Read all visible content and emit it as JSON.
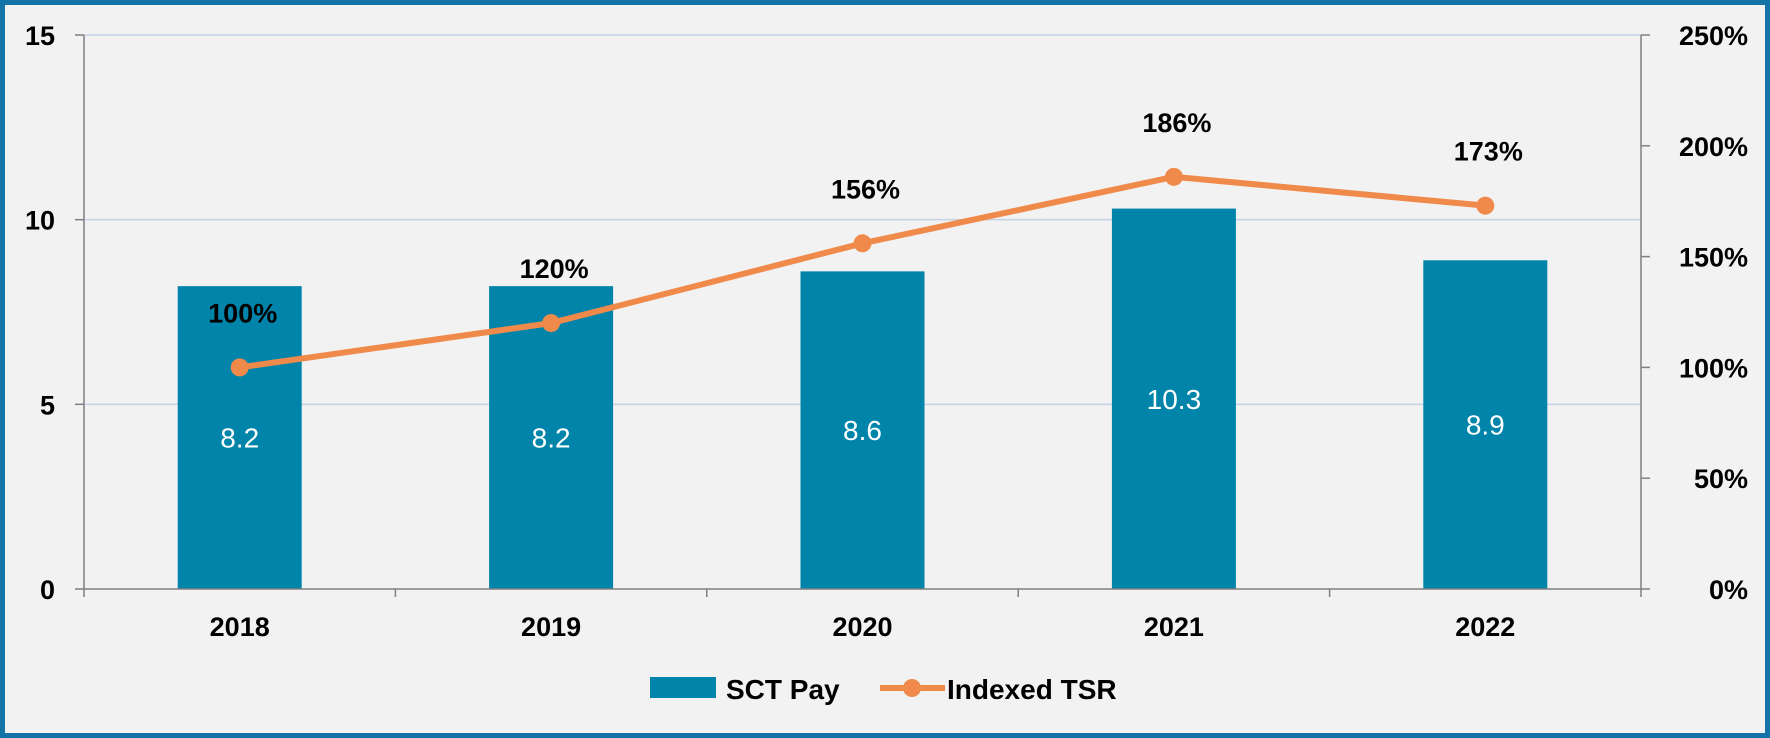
{
  "chart_data": {
    "type": "bar+line",
    "categories": [
      "2018",
      "2019",
      "2020",
      "2021",
      "2022"
    ],
    "series": [
      {
        "name": "SCT Pay",
        "type": "bar",
        "axis": "left",
        "values": [
          8.2,
          8.2,
          8.6,
          10.3,
          8.9
        ],
        "data_labels": [
          "8.2",
          "8.2",
          "8.6",
          "10.3",
          "8.9"
        ],
        "color": "#0084aa"
      },
      {
        "name": "Indexed TSR",
        "type": "line",
        "axis": "right",
        "values": [
          100,
          120,
          156,
          186,
          173
        ],
        "data_labels": [
          "100%",
          "120%",
          "156%",
          "186%",
          "173%"
        ],
        "color": "#f08a4b"
      }
    ],
    "y_left": {
      "min": 0,
      "max": 15,
      "ticks": [
        "0",
        "5",
        "10",
        "15"
      ]
    },
    "y_right": {
      "min": 0,
      "max": 250,
      "ticks": [
        "0%",
        "50%",
        "100%",
        "150%",
        "200%",
        "250%"
      ]
    },
    "gridlines": true,
    "legend_position": "bottom"
  },
  "colors": {
    "frame_border": "#1474a8",
    "background": "#f2f2f2",
    "gridline": "#c5d3e8",
    "axis": "#808080"
  }
}
